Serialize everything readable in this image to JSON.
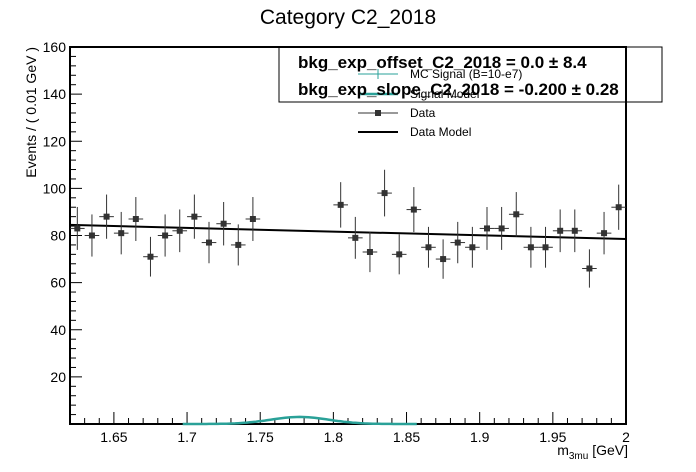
{
  "chart_data": {
    "type": "scatter",
    "title": "Category C2_2018",
    "xlabel_main": "m",
    "xlabel_sub": "3mu",
    "xlabel_unit": " [GeV]",
    "ylabel": "Events / ( 0.01 GeV )",
    "xlim": [
      1.62,
      2.0
    ],
    "ylim": [
      0,
      160
    ],
    "x_ticks": [
      1.65,
      1.7,
      1.75,
      1.8,
      1.85,
      1.9,
      1.95,
      2.0
    ],
    "x_tick_labels": [
      "1.65",
      "1.7",
      "1.75",
      "1.8",
      "1.85",
      "1.9",
      "1.95",
      "2"
    ],
    "y_ticks": [
      20,
      40,
      60,
      80,
      100,
      120,
      140,
      160
    ],
    "y_tick_labels": [
      "20",
      "40",
      "60",
      "80",
      "100",
      "120",
      "140",
      "160"
    ],
    "legend": {
      "position": "top-right",
      "entries": [
        "MC Signal (B=10-e7)",
        "Signal Model",
        "Data",
        "Data Model"
      ]
    },
    "stats": [
      "bkg_exp_offset_C2_2018 =  0.0 ± 8.4",
      "bkg_exp_slope_C2_2018 = -0.200 ± 0.28"
    ],
    "colors": {
      "signal_model": "#2aa198",
      "data": "#333333",
      "data_model": "#000000"
    },
    "series": [
      {
        "name": "Data",
        "x": [
          1.625,
          1.635,
          1.645,
          1.655,
          1.665,
          1.675,
          1.685,
          1.695,
          1.705,
          1.715,
          1.725,
          1.735,
          1.745,
          1.805,
          1.815,
          1.825,
          1.835,
          1.845,
          1.855,
          1.865,
          1.875,
          1.885,
          1.895,
          1.905,
          1.915,
          1.925,
          1.935,
          1.945,
          1.955,
          1.965,
          1.975,
          1.985,
          1.995
        ],
        "y": [
          83,
          80,
          88,
          81,
          87,
          71,
          80,
          82,
          88,
          77,
          85,
          76,
          87,
          93,
          79,
          73,
          98,
          72,
          91,
          75,
          70,
          77,
          75,
          83,
          83,
          89,
          75,
          75,
          82,
          82,
          66,
          81,
          92
        ]
      },
      {
        "name": "Data Model",
        "x": [
          1.62,
          2.0
        ],
        "y": [
          84.5,
          78.5
        ]
      },
      {
        "name": "Signal Model",
        "mean": 1.777,
        "sigma": 0.02,
        "peak": 3
      }
    ]
  }
}
